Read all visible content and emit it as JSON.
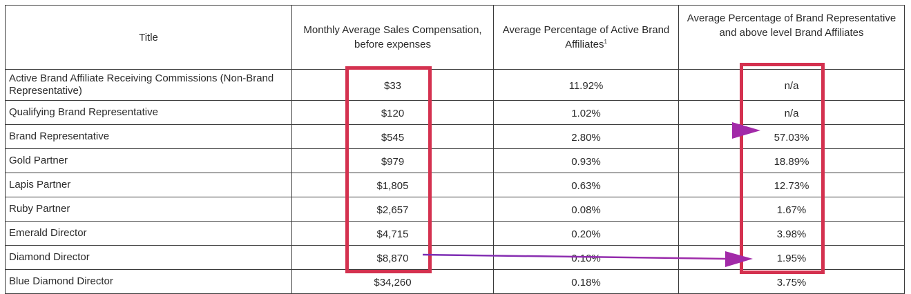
{
  "table": {
    "headers": {
      "title": "Title",
      "compensation": "Monthly Average Sales Compensation, before expenses",
      "active_pct": "Average Percentage of Active Brand Affiliates",
      "active_pct_footnote": "1",
      "rep_pct": "Average Percentage of Brand Representative and above level Brand Affiliates"
    },
    "rows": [
      {
        "title": "Active Brand Affiliate Receiving Commissions (Non-Brand Representative)",
        "compensation": "$33",
        "active_pct": "11.92%",
        "rep_pct": "n/a"
      },
      {
        "title": "Qualifying Brand Representative",
        "compensation": "$120",
        "active_pct": "1.02%",
        "rep_pct": "n/a"
      },
      {
        "title": "Brand Representative",
        "compensation": "$545",
        "active_pct": "2.80%",
        "rep_pct": "57.03%"
      },
      {
        "title": "Gold Partner",
        "compensation": "$979",
        "active_pct": "0.93%",
        "rep_pct": "18.89%"
      },
      {
        "title": "Lapis Partner",
        "compensation": "$1,805",
        "active_pct": "0.63%",
        "rep_pct": "12.73%"
      },
      {
        "title": "Ruby Partner",
        "compensation": "$2,657",
        "active_pct": "0.08%",
        "rep_pct": "1.67%"
      },
      {
        "title": "Emerald Director",
        "compensation": "$4,715",
        "active_pct": "0.20%",
        "rep_pct": "3.98%"
      },
      {
        "title": "Diamond Director",
        "compensation": "$8,870",
        "active_pct": "0.10%",
        "rep_pct": "1.95%"
      },
      {
        "title": "Blue Diamond Director",
        "compensation": "$34,260",
        "active_pct": "0.18%",
        "rep_pct": "3.75%"
      }
    ]
  },
  "annotations": {
    "highlight_color": "#d4314f",
    "arrow_color": "#8e2bb0"
  }
}
